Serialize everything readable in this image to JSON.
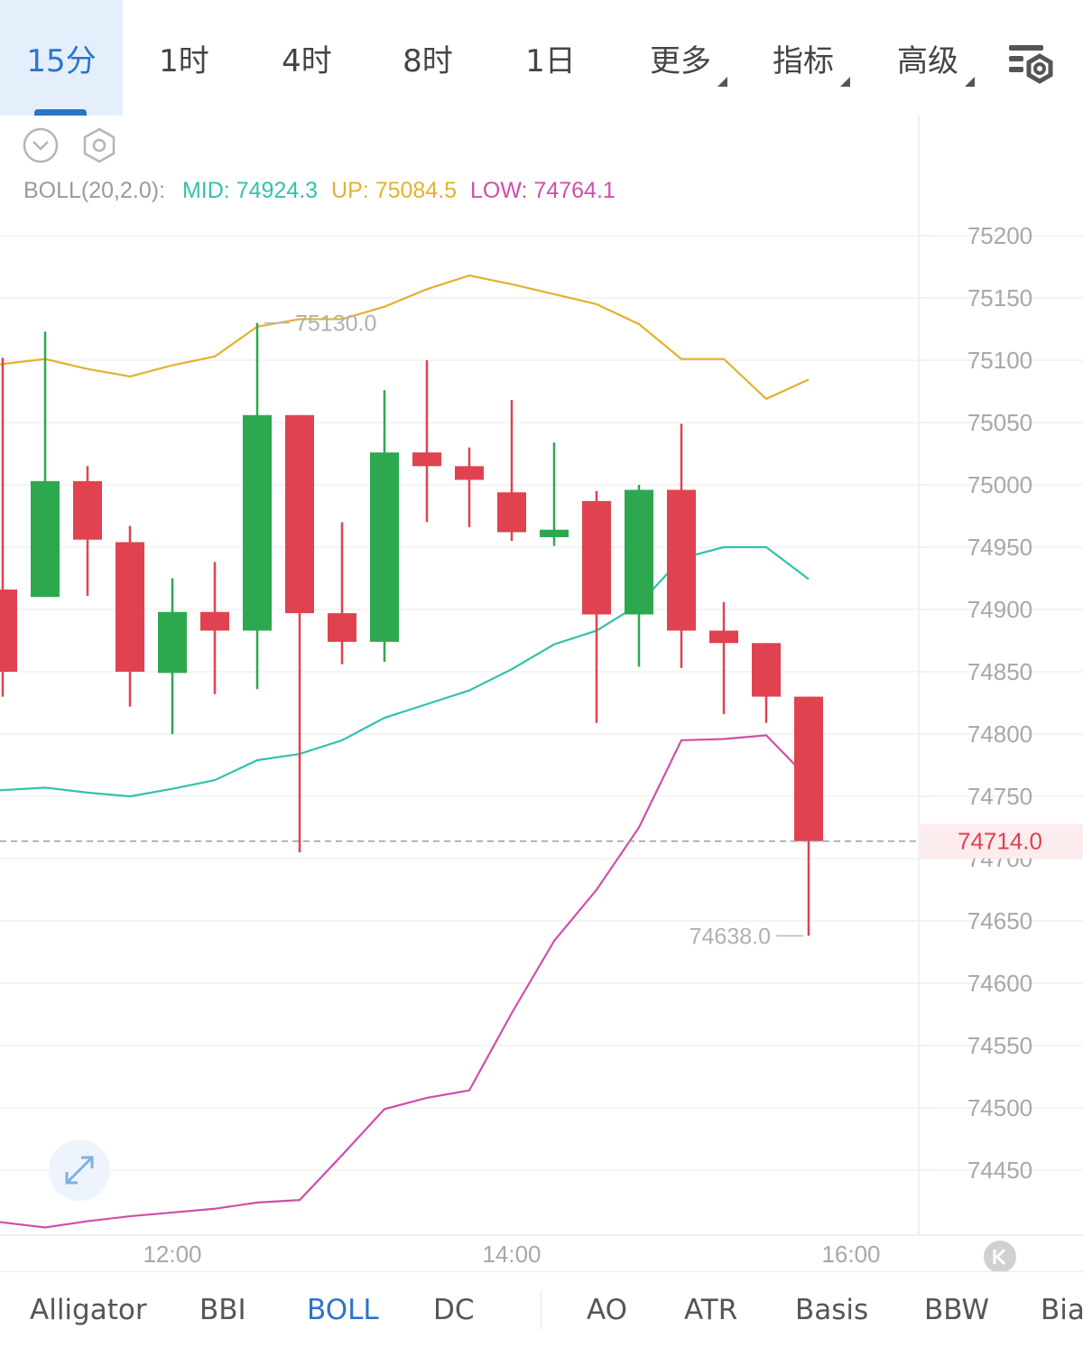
{
  "timeframes": [
    {
      "label": "15分",
      "active": true
    },
    {
      "label": "1时"
    },
    {
      "label": "4时"
    },
    {
      "label": "8时"
    },
    {
      "label": "1日"
    },
    {
      "label": "更多",
      "dropdown": true
    },
    {
      "label": "指标",
      "dropdown": true
    },
    {
      "label": "高级",
      "dropdown": true
    }
  ],
  "toolbar_icons": [
    "collapse-chevron-icon",
    "hexagon-settings-icon",
    "chart-settings-icon",
    "expand-icon",
    "scroll-to-latest-icon"
  ],
  "boll_legend": {
    "name": "BOLL(20,2.0):",
    "mid_label": "MID:",
    "mid_value": "74924.3",
    "up_label": "UP:",
    "up_value": "75084.5",
    "low_label": "LOW:",
    "low_value": "74764.1"
  },
  "colors": {
    "bull": "#2ea84f",
    "bear": "#e0424f",
    "mid": "#32c2ad",
    "up": "#e2b22e",
    "low": "#d14ea9",
    "accent": "#2b74c9"
  },
  "chart_data": {
    "type": "candlestick",
    "y_ticks": [
      75200,
      75150,
      75100,
      75050,
      75000,
      74950,
      74900,
      74850,
      74800,
      74750,
      74700,
      74650,
      74600,
      74550,
      74500,
      74450
    ],
    "ylim": [
      74380,
      75220
    ],
    "x_ticks": [
      "12:00",
      "14:00",
      "16:00"
    ],
    "candles": [
      {
        "o": 74916,
        "h": 75102,
        "l": 74830,
        "c": 74850
      },
      {
        "o": 74910,
        "h": 75123,
        "l": 74910,
        "c": 75003
      },
      {
        "o": 75003,
        "h": 75015,
        "l": 74911,
        "c": 74956
      },
      {
        "o": 74954,
        "h": 74967,
        "l": 74822,
        "c": 74850
      },
      {
        "o": 74849,
        "h": 74925,
        "l": 74800,
        "c": 74898
      },
      {
        "o": 74898,
        "h": 74938,
        "l": 74832,
        "c": 74883
      },
      {
        "o": 74883,
        "h": 75130,
        "l": 74836,
        "c": 75056
      },
      {
        "o": 75056,
        "h": 75056,
        "l": 74705,
        "c": 74897
      },
      {
        "o": 74897,
        "h": 74970,
        "l": 74856,
        "c": 74874
      },
      {
        "o": 74874,
        "h": 75076,
        "l": 74858,
        "c": 75026
      },
      {
        "o": 75026,
        "h": 75100,
        "l": 74970,
        "c": 75015
      },
      {
        "o": 75015,
        "h": 75030,
        "l": 74966,
        "c": 75004
      },
      {
        "o": 74994,
        "h": 75068,
        "l": 74955,
        "c": 74962
      },
      {
        "o": 74958,
        "h": 75034,
        "l": 74951,
        "c": 74964
      },
      {
        "o": 74987,
        "h": 74995,
        "l": 74809,
        "c": 74896
      },
      {
        "o": 74896,
        "h": 75000,
        "l": 74854,
        "c": 74996
      },
      {
        "o": 74996,
        "h": 75049,
        "l": 74853,
        "c": 74883
      },
      {
        "o": 74883,
        "h": 74906,
        "l": 74816,
        "c": 74873
      },
      {
        "o": 74873,
        "h": 74873,
        "l": 74809,
        "c": 74830
      },
      {
        "o": 74830,
        "h": 74830,
        "l": 74638,
        "c": 74714
      }
    ],
    "boll_up": [
      75097,
      75101,
      75093,
      75087,
      75096,
      75103,
      75127,
      75133,
      75133,
      75143,
      75157,
      75168,
      75161,
      75153,
      75145,
      75129,
      75101,
      75101,
      75069,
      75084.5
    ],
    "boll_mid": [
      74755,
      74757,
      74753,
      74750,
      74756,
      74763,
      74779,
      74784,
      74795,
      74813,
      74824,
      74835,
      74852,
      74872,
      74883,
      74904,
      74941,
      74950,
      74950,
      74924.3
    ],
    "boll_low": [
      74408,
      74404,
      74409,
      74413,
      74416,
      74419,
      74424,
      74426,
      74462,
      74499,
      74508,
      74514,
      74576,
      74634,
      74675,
      74725,
      74795,
      74796,
      74799,
      74764.1
    ],
    "high_marker": "75130.0",
    "low_marker": "74638.0",
    "last_price": "74714.0"
  },
  "bottom_indicators": [
    {
      "label": "Alligator"
    },
    {
      "label": "BBI"
    },
    {
      "label": "BOLL",
      "active": true
    },
    {
      "label": "DC"
    },
    {
      "label": "AO"
    },
    {
      "label": "ATR"
    },
    {
      "label": "Basis"
    },
    {
      "label": "BBW"
    },
    {
      "label": "Bias"
    }
  ]
}
